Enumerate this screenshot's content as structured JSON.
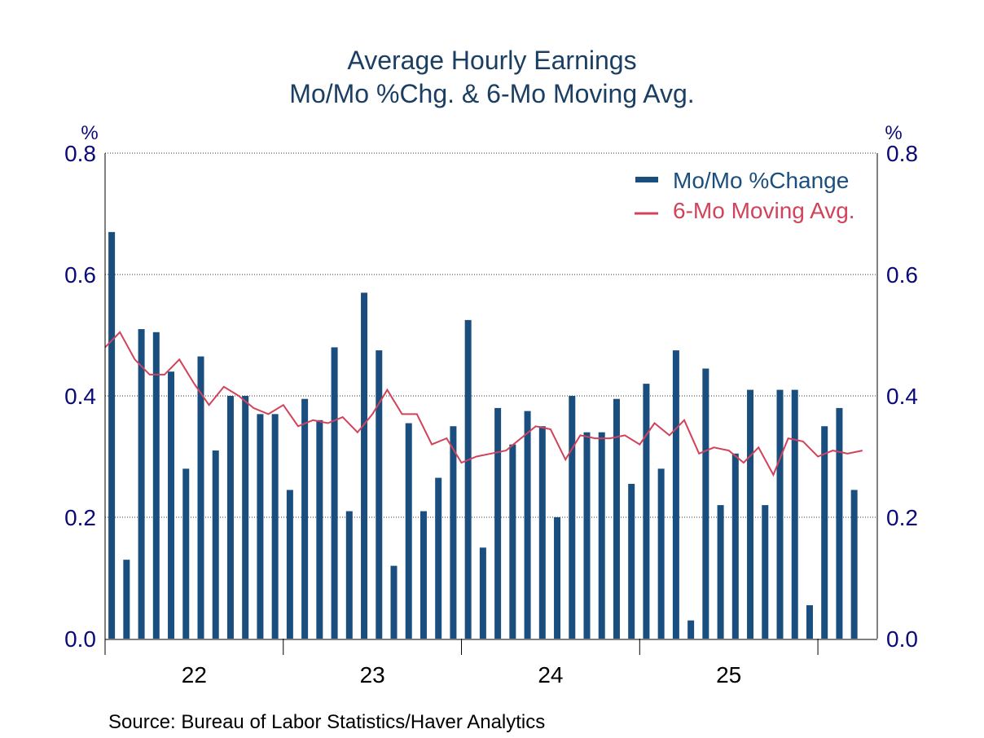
{
  "colors": {
    "bar": "#1a4e7e",
    "line": "#d1435b",
    "tick_text": "#0a0a7a",
    "grid": "#333333"
  },
  "chart_data": {
    "type": "bar",
    "title": [
      "Average Hourly Earnings",
      "Mo/Mo %Chg. & 6-Mo Moving Avg."
    ],
    "unit_left": "%",
    "unit_right": "%",
    "ylim": [
      0,
      0.8
    ],
    "y_ticks": [
      "0.0",
      "0.2",
      "0.4",
      "0.6",
      "0.8"
    ],
    "x_year_labels": [
      "22",
      "23",
      "24",
      "25"
    ],
    "grid": "horizontal dotted",
    "legend_position": "top-right",
    "series": [
      {
        "name": "Mo/Mo %Change",
        "kind": "bar",
        "values": [
          0.67,
          0.13,
          0.51,
          0.505,
          0.44,
          0.28,
          0.465,
          0.31,
          0.4,
          0.4,
          0.37,
          0.37,
          0.245,
          0.395,
          0.36,
          0.48,
          0.21,
          0.57,
          0.475,
          0.12,
          0.355,
          0.21,
          0.265,
          0.35,
          0.525,
          0.15,
          0.38,
          0.32,
          0.375,
          0.35,
          0.2,
          0.4,
          0.34,
          0.34,
          0.395,
          0.255,
          0.42,
          0.28,
          0.475,
          0.03,
          0.445,
          0.22,
          0.305,
          0.41,
          0.22,
          0.41,
          0.41,
          0.055,
          0.35,
          0.38,
          0.245
        ]
      },
      {
        "name": "6-Mo Moving Avg.",
        "kind": "line",
        "values": [
          0.48,
          0.505,
          0.46,
          0.435,
          0.435,
          0.46,
          0.42,
          0.385,
          0.415,
          0.4,
          0.38,
          0.37,
          0.385,
          0.35,
          0.36,
          0.355,
          0.365,
          0.34,
          0.37,
          0.41,
          0.37,
          0.37,
          0.32,
          0.33,
          0.29,
          0.3,
          0.305,
          0.31,
          0.33,
          0.35,
          0.345,
          0.295,
          0.335,
          0.33,
          0.33,
          0.335,
          0.32,
          0.355,
          0.335,
          0.36,
          0.305,
          0.315,
          0.31,
          0.29,
          0.315,
          0.27,
          0.33,
          0.325,
          0.3,
          0.31,
          0.305,
          0.31
        ]
      }
    ]
  },
  "source": "Source:  Bureau of Labor Statistics/Haver Analytics"
}
